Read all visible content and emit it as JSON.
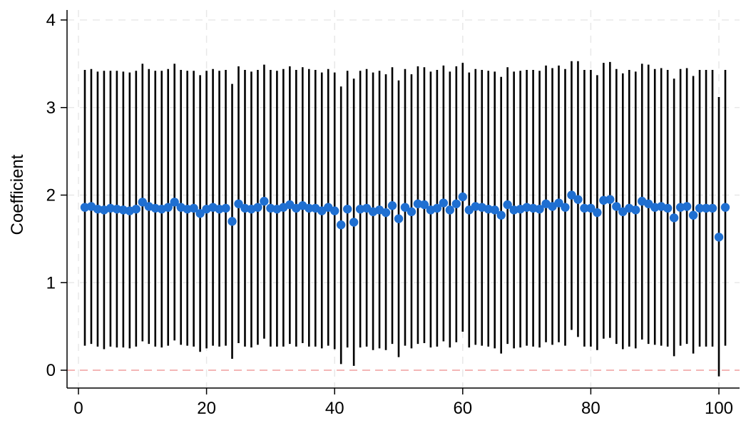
{
  "chart_data": {
    "type": "scatter",
    "title": "",
    "xlabel": "",
    "ylabel": "Coefficient",
    "xlim": [
      0,
      102
    ],
    "ylim": [
      -0.2,
      4.1
    ],
    "xticks": [
      0,
      20,
      40,
      60,
      80,
      100
    ],
    "yticks": [
      0,
      1,
      2,
      3,
      4
    ],
    "grid": true,
    "reference_line": {
      "y": 0,
      "color": "#f4b6b6",
      "style": "dashed"
    },
    "colors": {
      "point": "#1f6fd1",
      "ci_line": "#000000",
      "grid": "#e8e8e8"
    },
    "series": [
      {
        "x": [
          1,
          2,
          3,
          4,
          5,
          6,
          7,
          8,
          9,
          10,
          11,
          12,
          13,
          14,
          15,
          16,
          17,
          18,
          19,
          20,
          21,
          22,
          23,
          24,
          25,
          26,
          27,
          28,
          29,
          30,
          31,
          32,
          33,
          34,
          35,
          36,
          37,
          38,
          39,
          40,
          41,
          42,
          43,
          44,
          45,
          46,
          47,
          48,
          49,
          50,
          51,
          52,
          53,
          54,
          55,
          56,
          57,
          58,
          59,
          60,
          61,
          62,
          63,
          64,
          65,
          66,
          67,
          68,
          69,
          70,
          71,
          72,
          73,
          74,
          75,
          76,
          77,
          78,
          79,
          80,
          81,
          82,
          83,
          84,
          85,
          86,
          87,
          88,
          89,
          90,
          91,
          92,
          93,
          94,
          95,
          96,
          97,
          98,
          99,
          100,
          101
        ],
        "estimate": [
          1.86,
          1.87,
          1.84,
          1.83,
          1.85,
          1.84,
          1.83,
          1.82,
          1.84,
          1.92,
          1.87,
          1.85,
          1.84,
          1.86,
          1.92,
          1.86,
          1.84,
          1.85,
          1.79,
          1.84,
          1.86,
          1.84,
          1.85,
          1.7,
          1.9,
          1.85,
          1.84,
          1.86,
          1.93,
          1.85,
          1.84,
          1.86,
          1.89,
          1.85,
          1.88,
          1.85,
          1.85,
          1.82,
          1.86,
          1.82,
          1.66,
          1.84,
          1.69,
          1.84,
          1.85,
          1.81,
          1.83,
          1.8,
          1.88,
          1.73,
          1.86,
          1.81,
          1.9,
          1.89,
          1.83,
          1.85,
          1.91,
          1.83,
          1.9,
          1.98,
          1.83,
          1.87,
          1.86,
          1.84,
          1.83,
          1.77,
          1.89,
          1.83,
          1.84,
          1.86,
          1.85,
          1.84,
          1.9,
          1.87,
          1.91,
          1.86,
          2.0,
          1.95,
          1.85,
          1.85,
          1.8,
          1.94,
          1.95,
          1.87,
          1.81,
          1.85,
          1.83,
          1.93,
          1.9,
          1.86,
          1.87,
          1.85,
          1.74,
          1.86,
          1.87,
          1.77,
          1.85,
          1.85,
          1.85,
          1.52,
          1.86
        ],
        "ci_low": [
          0.28,
          0.3,
          0.27,
          0.24,
          0.27,
          0.26,
          0.26,
          0.25,
          0.27,
          0.33,
          0.3,
          0.27,
          0.26,
          0.28,
          0.34,
          0.29,
          0.28,
          0.27,
          0.21,
          0.25,
          0.28,
          0.27,
          0.28,
          0.13,
          0.31,
          0.27,
          0.26,
          0.29,
          0.36,
          0.27,
          0.27,
          0.27,
          0.3,
          0.27,
          0.31,
          0.27,
          0.27,
          0.25,
          0.28,
          0.24,
          0.07,
          0.26,
          0.05,
          0.26,
          0.27,
          0.23,
          0.25,
          0.23,
          0.3,
          0.15,
          0.28,
          0.25,
          0.3,
          0.31,
          0.26,
          0.27,
          0.33,
          0.26,
          0.32,
          0.44,
          0.26,
          0.29,
          0.28,
          0.27,
          0.25,
          0.19,
          0.3,
          0.25,
          0.26,
          0.28,
          0.27,
          0.26,
          0.32,
          0.29,
          0.32,
          0.28,
          0.46,
          0.38,
          0.27,
          0.27,
          0.23,
          0.36,
          0.37,
          0.3,
          0.24,
          0.27,
          0.25,
          0.35,
          0.3,
          0.29,
          0.28,
          0.27,
          0.16,
          0.28,
          0.3,
          0.19,
          0.27,
          0.27,
          0.27,
          -0.07,
          0.28
        ],
        "ci_high": [
          3.43,
          3.44,
          3.41,
          3.42,
          3.42,
          3.42,
          3.41,
          3.4,
          3.42,
          3.5,
          3.44,
          3.42,
          3.42,
          3.44,
          3.5,
          3.43,
          3.42,
          3.42,
          3.37,
          3.42,
          3.44,
          3.42,
          3.43,
          3.27,
          3.47,
          3.43,
          3.41,
          3.43,
          3.49,
          3.43,
          3.42,
          3.44,
          3.47,
          3.43,
          3.46,
          3.44,
          3.43,
          3.4,
          3.44,
          3.4,
          3.24,
          3.42,
          3.33,
          3.42,
          3.44,
          3.4,
          3.42,
          3.38,
          3.46,
          3.31,
          3.44,
          3.38,
          3.47,
          3.46,
          3.41,
          3.43,
          3.48,
          3.41,
          3.47,
          3.51,
          3.4,
          3.44,
          3.43,
          3.42,
          3.41,
          3.35,
          3.46,
          3.41,
          3.42,
          3.43,
          3.43,
          3.42,
          3.48,
          3.45,
          3.48,
          3.44,
          3.53,
          3.53,
          3.43,
          3.43,
          3.37,
          3.51,
          3.52,
          3.44,
          3.39,
          3.43,
          3.41,
          3.5,
          3.49,
          3.44,
          3.45,
          3.43,
          3.33,
          3.44,
          3.45,
          3.36,
          3.43,
          3.43,
          3.43,
          3.12,
          3.43
        ]
      }
    ]
  }
}
